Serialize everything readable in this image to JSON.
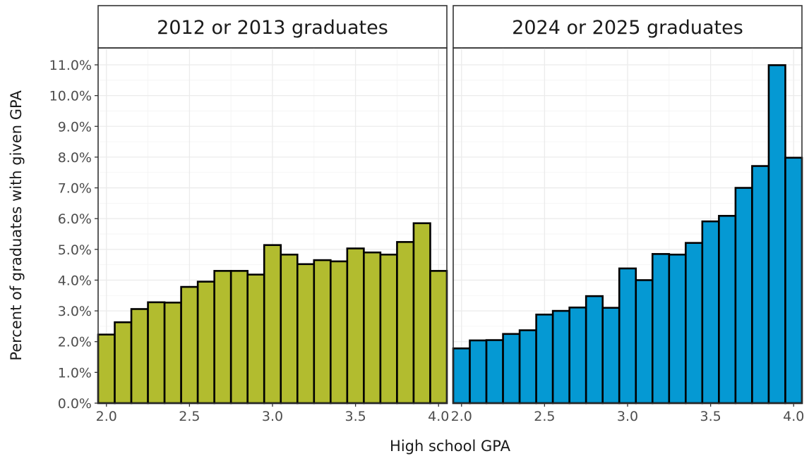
{
  "chart_data": {
    "type": "bar",
    "xlabel": "High school GPA",
    "ylabel": "Percent of graduates with given GPA",
    "xlim": [
      1.95,
      4.05
    ],
    "ylim": [
      0,
      0.1155
    ],
    "x_ticks": [
      2.0,
      2.5,
      3.0,
      3.5,
      4.0
    ],
    "x_tick_labels": [
      "2.0",
      "2.5",
      "3.0",
      "3.5",
      "4.0"
    ],
    "y_ticks": [
      0,
      0.01,
      0.02,
      0.03,
      0.04,
      0.05,
      0.06,
      0.07,
      0.08,
      0.09,
      0.1,
      0.11
    ],
    "y_tick_labels": [
      "0.0%",
      "1.0%",
      "2.0%",
      "3.0%",
      "4.0%",
      "5.0%",
      "6.0%",
      "7.0%",
      "8.0%",
      "9.0%",
      "10.0%",
      "11.0%"
    ],
    "grid": true,
    "bin_width": 0.1,
    "panels": [
      {
        "title": "2012 or 2013 graduates",
        "color": "#b2bc2f",
        "x": [
          2.0,
          2.1,
          2.2,
          2.3,
          2.4,
          2.5,
          2.6,
          2.7,
          2.8,
          2.9,
          3.0,
          3.1,
          3.2,
          3.3,
          3.4,
          3.5,
          3.6,
          3.7,
          3.8,
          3.9,
          4.0
        ],
        "values": [
          0.0223,
          0.0263,
          0.0306,
          0.0328,
          0.0327,
          0.0378,
          0.0395,
          0.043,
          0.043,
          0.0418,
          0.0514,
          0.0483,
          0.0452,
          0.0465,
          0.0461,
          0.0503,
          0.049,
          0.0483,
          0.0524,
          0.0585,
          0.043
        ]
      },
      {
        "title": "2024 or 2025 graduates",
        "color": "#0599d3",
        "x": [
          2.0,
          2.1,
          2.2,
          2.3,
          2.4,
          2.5,
          2.6,
          2.7,
          2.8,
          2.9,
          3.0,
          3.1,
          3.2,
          3.3,
          3.4,
          3.5,
          3.6,
          3.7,
          3.8,
          3.9,
          4.0
        ],
        "values": [
          0.0178,
          0.0204,
          0.0205,
          0.0225,
          0.0237,
          0.0288,
          0.03,
          0.0311,
          0.0348,
          0.031,
          0.0438,
          0.04,
          0.0485,
          0.0483,
          0.0521,
          0.0591,
          0.0609,
          0.07,
          0.0771,
          0.1099,
          0.0798
        ]
      }
    ]
  }
}
